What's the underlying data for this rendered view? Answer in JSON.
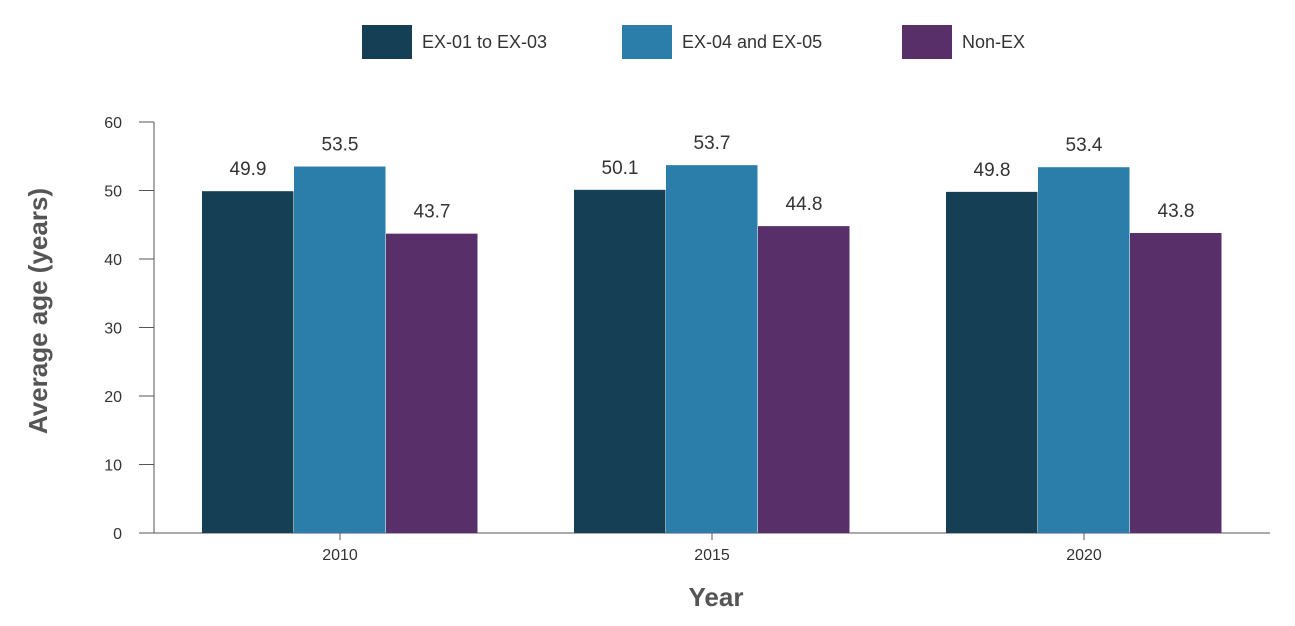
{
  "chart_data": {
    "type": "bar",
    "title": "",
    "xlabel": "Year",
    "ylabel": "Average age (years)",
    "categories": [
      "2010",
      "2015",
      "2020"
    ],
    "series": [
      {
        "name": "EX-01 to EX-03",
        "values": [
          49.9,
          50.1,
          49.8
        ],
        "color": "#153F55"
      },
      {
        "name": "EX-04 and EX-05",
        "values": [
          53.5,
          53.7,
          53.4
        ],
        "color": "#2A7EA9"
      },
      {
        "name": "Non-EX",
        "values": [
          43.7,
          44.8,
          43.8
        ],
        "color": "#582F69"
      }
    ],
    "ylim": [
      0,
      60
    ],
    "yticks": [
      0,
      10,
      20,
      30,
      40,
      50,
      60
    ],
    "grid": false,
    "legend_position": "top-center",
    "data_labels": true
  }
}
